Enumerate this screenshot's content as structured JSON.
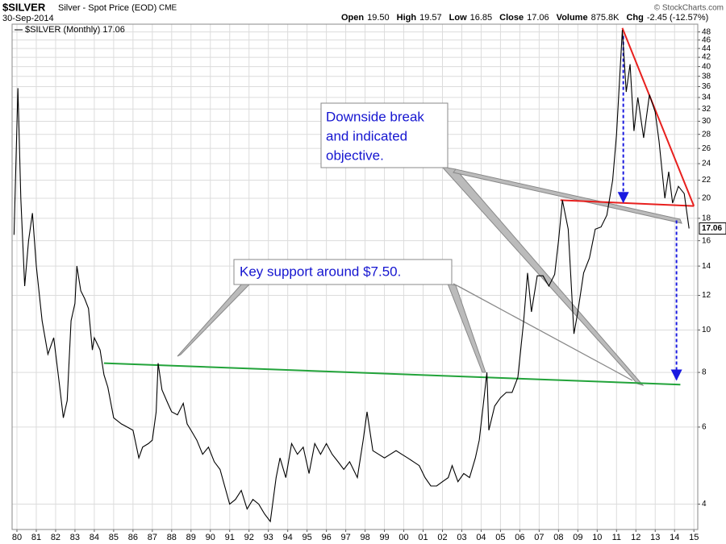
{
  "chart_data": {
    "type": "line",
    "yscale": "log",
    "grid": true,
    "symbol": "$SILVER",
    "description": "Silver - Spot Price (EOD)",
    "exchange": "CME",
    "date": "30-Sep-2014",
    "stats": [
      {
        "label": "Open",
        "value": "19.50"
      },
      {
        "label": "High",
        "value": "19.57"
      },
      {
        "label": "Low",
        "value": "16.85"
      },
      {
        "label": "Close",
        "value": "17.06"
      },
      {
        "label": "Volume",
        "value": "875.8K"
      },
      {
        "label": "Chg",
        "value": "-2.45 (-12.57%)"
      }
    ],
    "credit": "© StockCharts.com",
    "legend": "$SILVER (Monthly) 17.06",
    "x": [
      1979.85,
      1980.05,
      1980.2,
      1980.4,
      1980.6,
      1980.8,
      1981.0,
      1981.3,
      1981.6,
      1981.9,
      1982.2,
      1982.4,
      1982.6,
      1982.8,
      1983.0,
      1983.1,
      1983.3,
      1983.5,
      1983.7,
      1983.9,
      1984.0,
      1984.3,
      1984.5,
      1984.7,
      1985.0,
      1985.4,
      1985.7,
      1986.0,
      1986.3,
      1986.5,
      1986.8,
      1987.0,
      1987.2,
      1987.3,
      1987.5,
      1987.8,
      1988.0,
      1988.3,
      1988.6,
      1988.8,
      1989.0,
      1989.3,
      1989.6,
      1989.9,
      1990.2,
      1990.5,
      1990.8,
      1991.0,
      1991.3,
      1991.6,
      1991.9,
      1992.2,
      1992.5,
      1992.8,
      1993.1,
      1993.4,
      1993.6,
      1993.9,
      1994.2,
      1994.5,
      1994.8,
      1995.1,
      1995.4,
      1995.7,
      1996.0,
      1996.3,
      1996.6,
      1996.9,
      1997.2,
      1997.6,
      1997.9,
      1998.1,
      1998.4,
      1998.7,
      1999.0,
      1999.3,
      1999.6,
      1999.9,
      2000.2,
      2000.5,
      2000.8,
      2001.1,
      2001.4,
      2001.7,
      2002.0,
      2002.3,
      2002.5,
      2002.8,
      2003.1,
      2003.4,
      2003.7,
      2003.9,
      2004.1,
      2004.3,
      2004.4,
      2004.7,
      2005.0,
      2005.3,
      2005.6,
      2005.9,
      2006.2,
      2006.4,
      2006.6,
      2006.9,
      2007.2,
      2007.5,
      2007.8,
      2008.0,
      2008.2,
      2008.5,
      2008.8,
      2009.0,
      2009.3,
      2009.6,
      2009.9,
      2010.2,
      2010.5,
      2010.8,
      2011.0,
      2011.3,
      2011.5,
      2011.7,
      2011.9,
      2012.1,
      2012.4,
      2012.7,
      2013.0,
      2013.2,
      2013.5,
      2013.7,
      2013.9,
      2014.2,
      2014.5,
      2014.75
    ],
    "series": [
      {
        "name": "$SILVER",
        "color": "#000000",
        "values": [
          16.5,
          35.7,
          20,
          12.6,
          16,
          18.5,
          14,
          10.5,
          8.8,
          9.6,
          7.5,
          6.3,
          6.9,
          10.5,
          11.5,
          14,
          12.3,
          11.8,
          11.2,
          9.0,
          9.6,
          9.0,
          7.9,
          7.4,
          6.3,
          6.1,
          6.0,
          5.9,
          5.1,
          5.4,
          5.5,
          5.6,
          6.5,
          8.4,
          7.3,
          6.8,
          6.5,
          6.4,
          6.8,
          6.1,
          5.9,
          5.6,
          5.2,
          5.4,
          5.0,
          4.8,
          4.3,
          4.0,
          4.1,
          4.3,
          3.9,
          4.1,
          4.0,
          3.8,
          3.65,
          4.6,
          5.1,
          4.6,
          5.5,
          5.2,
          5.4,
          4.7,
          5.5,
          5.2,
          5.5,
          5.2,
          5.0,
          4.8,
          5.0,
          4.6,
          5.6,
          6.5,
          5.3,
          5.2,
          5.1,
          5.2,
          5.3,
          5.2,
          5.1,
          5.0,
          4.9,
          4.6,
          4.4,
          4.4,
          4.5,
          4.6,
          4.9,
          4.5,
          4.7,
          4.6,
          5.1,
          5.6,
          6.7,
          8.0,
          5.9,
          6.7,
          7.0,
          7.2,
          7.2,
          7.8,
          10.5,
          13.5,
          11.0,
          13.3,
          13.3,
          12.6,
          13.4,
          16.0,
          19.8,
          17.0,
          9.8,
          11.0,
          13.5,
          14.6,
          17.0,
          17.2,
          18.3,
          22.0,
          28.0,
          48.5,
          35.0,
          40.5,
          28.5,
          34.0,
          27.5,
          34.5,
          31.5,
          27.0,
          20.0,
          23.0,
          19.5,
          21.3,
          20.5,
          17.06
        ]
      }
    ],
    "xlim": [
      1979.75,
      2015.2
    ],
    "xticks": [
      {
        "value": 1980,
        "label": "80"
      },
      {
        "value": 1981,
        "label": "81"
      },
      {
        "value": 1982,
        "label": "82"
      },
      {
        "value": 1983,
        "label": "83"
      },
      {
        "value": 1984,
        "label": "84"
      },
      {
        "value": 1985,
        "label": "85"
      },
      {
        "value": 1986,
        "label": "86"
      },
      {
        "value": 1987,
        "label": "87"
      },
      {
        "value": 1988,
        "label": "88"
      },
      {
        "value": 1989,
        "label": "89"
      },
      {
        "value": 1990,
        "label": "90"
      },
      {
        "value": 1991,
        "label": "91"
      },
      {
        "value": 1992,
        "label": "92"
      },
      {
        "value": 1993,
        "label": "93"
      },
      {
        "value": 1994,
        "label": "94"
      },
      {
        "value": 1995,
        "label": "95"
      },
      {
        "value": 1996,
        "label": "96"
      },
      {
        "value": 1997,
        "label": "97"
      },
      {
        "value": 1998,
        "label": "98"
      },
      {
        "value": 1999,
        "label": "99"
      },
      {
        "value": 2000,
        "label": "00"
      },
      {
        "value": 2001,
        "label": "01"
      },
      {
        "value": 2002,
        "label": "02"
      },
      {
        "value": 2003,
        "label": "03"
      },
      {
        "value": 2004,
        "label": "04"
      },
      {
        "value": 2005,
        "label": "05"
      },
      {
        "value": 2006,
        "label": "06"
      },
      {
        "value": 2007,
        "label": "07"
      },
      {
        "value": 2008,
        "label": "08"
      },
      {
        "value": 2009,
        "label": "09"
      },
      {
        "value": 2010,
        "label": "10"
      },
      {
        "value": 2011,
        "label": "11"
      },
      {
        "value": 2012,
        "label": "12"
      },
      {
        "value": 2013,
        "label": "13"
      },
      {
        "value": 2014,
        "label": "14"
      },
      {
        "value": 2015,
        "label": "15"
      }
    ],
    "ylim": [
      3.5,
      50
    ],
    "yticks": [
      4,
      6,
      8,
      10,
      12,
      14,
      16,
      18,
      20,
      22,
      24,
      26,
      28,
      30,
      32,
      34,
      36,
      38,
      40,
      42,
      44,
      46,
      48
    ],
    "annotations": [
      {
        "lines": [
          "Downside break",
          "and indicated",
          "objective."
        ]
      },
      {
        "lines": [
          "Key support around $7.50."
        ]
      }
    ],
    "trendlines": [
      {
        "color": "#22a33a",
        "x": [
          1984.5,
          2014.3
        ],
        "y": [
          8.4,
          7.5
        ],
        "dash": false,
        "arrow": false
      },
      {
        "color": "#e8201e",
        "x": [
          2008.1,
          2015.0
        ],
        "y": [
          19.8,
          19.2
        ],
        "dash": false,
        "arrow": false
      },
      {
        "color": "#e8201e",
        "x": [
          2011.3,
          2015.0
        ],
        "y": [
          49.0,
          19.2
        ],
        "dash": false,
        "arrow": false
      },
      {
        "color": "#1a1ae0",
        "x": [
          2011.35,
          2011.35
        ],
        "y": [
          47,
          19.6
        ],
        "dash": true,
        "arrow": true
      },
      {
        "color": "#1a1ae0",
        "x": [
          2014.1,
          2014.1
        ],
        "y": [
          17.8,
          7.7
        ],
        "dash": true,
        "arrow": true
      }
    ]
  }
}
